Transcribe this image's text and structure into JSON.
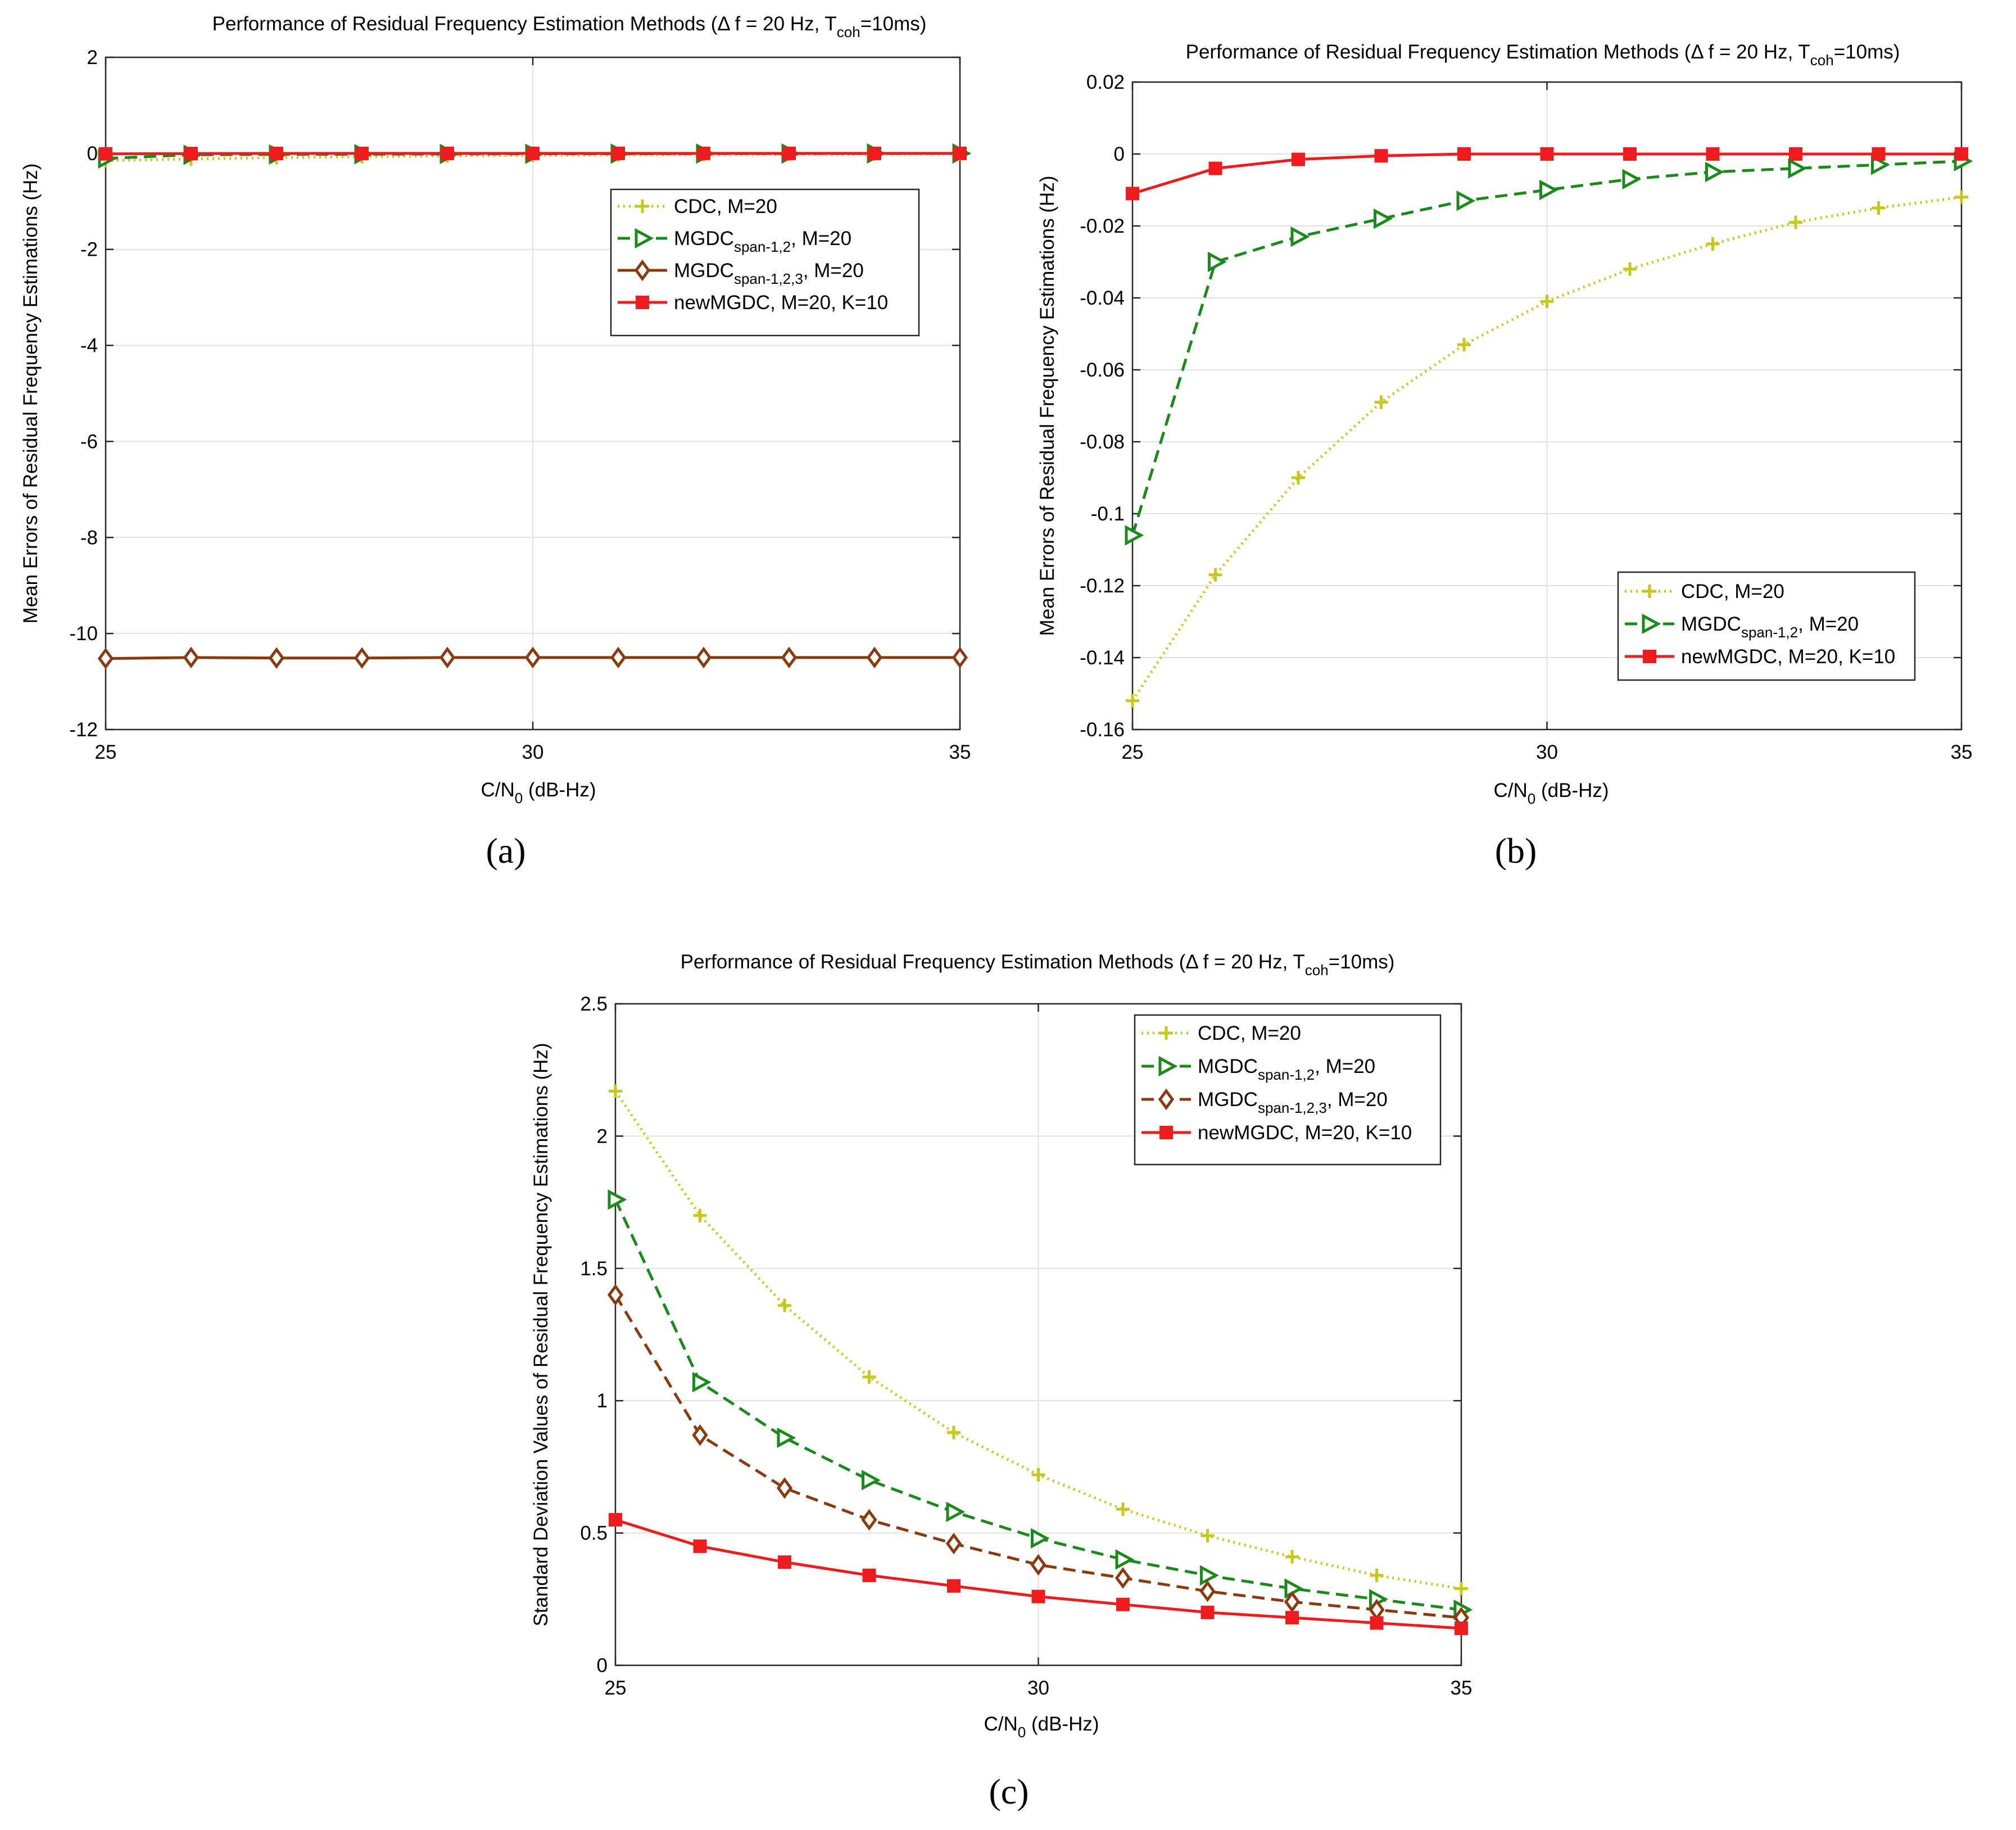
{
  "chart_data": [
    {
      "id": "a",
      "type": "line",
      "panel_label": "(a)",
      "title_main": "Performance of Residual Frequency Estimation Methods (",
      "title_delta": "Δ",
      "title_rest": " f = 20 Hz, T",
      "title_sub": "coh",
      "title_end": "=10ms)",
      "xlabel_main": "C/N",
      "xlabel_sub": "0",
      "xlabel_end": " (dB-Hz)",
      "ylabel": "Mean Errors of Residual Frequency Estimations (Hz)",
      "xlim": [
        25,
        35
      ],
      "ylim": [
        -12,
        2
      ],
      "xticks": [
        25,
        30,
        35
      ],
      "yticks": [
        -12,
        -10,
        -8,
        -6,
        -4,
        -2,
        0,
        2
      ],
      "ytick_labels": [
        "-12",
        "-10",
        "-8",
        "-6",
        "-4",
        "-2",
        "0",
        "2"
      ],
      "grid": true,
      "legend_position": "upper-right",
      "x": [
        25,
        26,
        27,
        28,
        29,
        30,
        31,
        32,
        33,
        34,
        35
      ],
      "series": [
        {
          "key": "cdc",
          "name": "CDC, M=20",
          "name_sub": "",
          "name_end": "",
          "color": "#c8c81a",
          "dash": "dotted",
          "marker": "plus",
          "values": [
            -0.152,
            -0.117,
            -0.09,
            -0.069,
            -0.053,
            -0.041,
            -0.032,
            -0.025,
            -0.019,
            -0.015,
            -0.012
          ]
        },
        {
          "key": "mgdc12",
          "name": "MGDC",
          "name_sub": "span-1,2",
          "name_end": ", M=20",
          "color": "#1a8a1a",
          "dash": "dashed",
          "marker": "triangle-right",
          "values": [
            -0.106,
            -0.03,
            -0.023,
            -0.018,
            -0.013,
            -0.01,
            -0.007,
            -0.005,
            -0.004,
            -0.003,
            -0.002
          ]
        },
        {
          "key": "mgdc123",
          "name": "MGDC",
          "name_sub": "span-1,2,3",
          "name_end": ", M=20",
          "color": "#8b3a0f",
          "dash": "solid",
          "marker": "diamond",
          "values": [
            -10.52,
            -10.5,
            -10.51,
            -10.51,
            -10.5,
            -10.5,
            -10.5,
            -10.5,
            -10.5,
            -10.5,
            -10.5
          ]
        },
        {
          "key": "newmgdc",
          "name": "newMGDC, M=20, K=10",
          "name_sub": "",
          "name_end": "",
          "color": "#ee1c1c",
          "dash": "solid",
          "marker": "square",
          "values": [
            -0.011,
            -0.004,
            -0.0015,
            -0.0005,
            0,
            0,
            0,
            0,
            0,
            0,
            0
          ]
        }
      ]
    },
    {
      "id": "b",
      "type": "line",
      "panel_label": "(b)",
      "title_main": "Performance of Residual Frequency Estimation Methods (",
      "title_delta": "Δ",
      "title_rest": " f = 20 Hz, T",
      "title_sub": "coh",
      "title_end": "=10ms)",
      "xlabel_main": "C/N",
      "xlabel_sub": "0",
      "xlabel_end": " (dB-Hz)",
      "ylabel": "Mean Errors of Residual Frequency Estimations (Hz)",
      "xlim": [
        25,
        35
      ],
      "ylim": [
        -0.16,
        0.02
      ],
      "xticks": [
        25,
        30,
        35
      ],
      "yticks": [
        -0.16,
        -0.14,
        -0.12,
        -0.1,
        -0.08,
        -0.06,
        -0.04,
        -0.02,
        0,
        0.02
      ],
      "ytick_labels": [
        "-0.16",
        "-0.14",
        "-0.12",
        "-0.1",
        "-0.08",
        "-0.06",
        "-0.04",
        "-0.02",
        "0",
        "0.02"
      ],
      "grid": true,
      "legend_position": "lower-right",
      "x": [
        25,
        26,
        27,
        28,
        29,
        30,
        31,
        32,
        33,
        34,
        35
      ],
      "series": [
        {
          "key": "cdc",
          "name": "CDC, M=20",
          "name_sub": "",
          "name_end": "",
          "color": "#c8c81a",
          "dash": "dotted",
          "marker": "plus",
          "values": [
            -0.152,
            -0.117,
            -0.09,
            -0.069,
            -0.053,
            -0.041,
            -0.032,
            -0.025,
            -0.019,
            -0.015,
            -0.012
          ]
        },
        {
          "key": "mgdc12",
          "name": "MGDC",
          "name_sub": "span-1,2",
          "name_end": ", M=20",
          "color": "#1a8a1a",
          "dash": "dashed",
          "marker": "triangle-right",
          "values": [
            -0.106,
            -0.03,
            -0.023,
            -0.018,
            -0.013,
            -0.01,
            -0.007,
            -0.005,
            -0.004,
            -0.003,
            -0.002
          ]
        },
        {
          "key": "newmgdc",
          "name": "newMGDC, M=20, K=10",
          "name_sub": "",
          "name_end": "",
          "color": "#ee1c1c",
          "dash": "solid",
          "marker": "square",
          "values": [
            -0.011,
            -0.004,
            -0.0015,
            -0.0005,
            0,
            0,
            0,
            0,
            0,
            0,
            0
          ]
        }
      ]
    },
    {
      "id": "c",
      "type": "line",
      "panel_label": "(c)",
      "title_main": "Performance of Residual Frequency Estimation Methods (",
      "title_delta": "Δ",
      "title_rest": " f = 20 Hz, T",
      "title_sub": "coh",
      "title_end": "=10ms)",
      "xlabel_main": "C/N",
      "xlabel_sub": "0",
      "xlabel_end": " (dB-Hz)",
      "ylabel": "Standard Deviation Values of Residual Frequency Estimations (Hz)",
      "xlim": [
        25,
        35
      ],
      "ylim": [
        0,
        2.5
      ],
      "xticks": [
        25,
        30,
        35
      ],
      "yticks": [
        0,
        0.5,
        1,
        1.5,
        2,
        2.5
      ],
      "ytick_labels": [
        "0",
        "0.5",
        "1",
        "1.5",
        "2",
        "2.5"
      ],
      "grid": true,
      "legend_position": "upper-right",
      "x": [
        25,
        26,
        27,
        28,
        29,
        30,
        31,
        32,
        33,
        34,
        35
      ],
      "series": [
        {
          "key": "cdc",
          "name": "CDC, M=20",
          "name_sub": "",
          "name_end": "",
          "color": "#c8c81a",
          "dash": "dotted",
          "marker": "plus",
          "values": [
            2.17,
            1.7,
            1.36,
            1.09,
            0.88,
            0.72,
            0.59,
            0.49,
            0.41,
            0.34,
            0.29
          ]
        },
        {
          "key": "mgdc12",
          "name": "MGDC",
          "name_sub": "span-1,2",
          "name_end": ", M=20",
          "color": "#1a8a1a",
          "dash": "dashed",
          "marker": "triangle-right",
          "values": [
            1.76,
            1.07,
            0.86,
            0.7,
            0.58,
            0.48,
            0.4,
            0.34,
            0.29,
            0.25,
            0.21
          ]
        },
        {
          "key": "mgdc123",
          "name": "MGDC",
          "name_sub": "span-1,2,3",
          "name_end": ", M=20",
          "color": "#8b3a0f",
          "dash": "dashed",
          "marker": "diamond",
          "values": [
            1.4,
            0.87,
            0.67,
            0.55,
            0.46,
            0.38,
            0.33,
            0.28,
            0.24,
            0.21,
            0.18
          ]
        },
        {
          "key": "newmgdc",
          "name": "newMGDC, M=20, K=10",
          "name_sub": "",
          "name_end": "",
          "color": "#ee1c1c",
          "dash": "solid",
          "marker": "square",
          "values": [
            0.55,
            0.45,
            0.39,
            0.34,
            0.3,
            0.26,
            0.23,
            0.2,
            0.18,
            0.16,
            0.14
          ]
        }
      ]
    }
  ]
}
